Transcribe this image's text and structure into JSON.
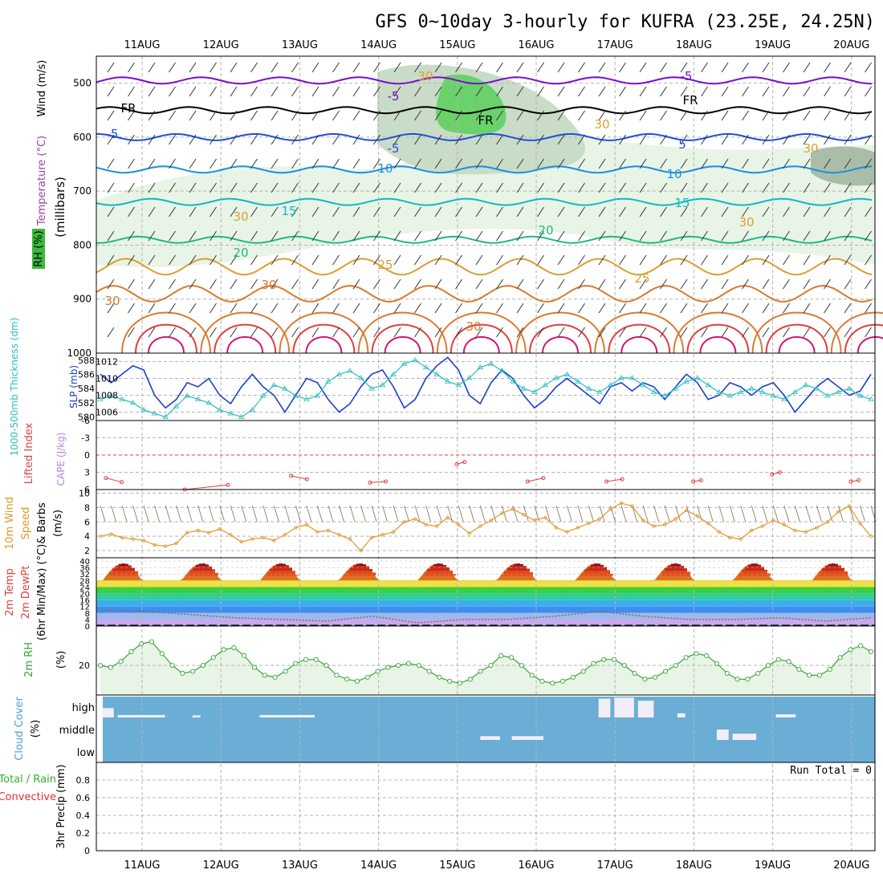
{
  "title": "GFS 0~10day 3-hourly for KUFRA (23.25E, 24.25N)",
  "colors": {
    "grid": "#b4b4b4",
    "rh_fill_light": "#e8f4e6",
    "rh_fill_mid": "#c9dcc7",
    "rh_fill_dark": "#a9bda9",
    "rh_fill_green": "#6bd26b",
    "temp_cold": "#7a0dc9",
    "temp_freeze": "#000000",
    "temp_m5": "#1f4fd6",
    "temp_10": "#1a8fe0",
    "temp_15": "#11b8c0",
    "temp_20": "#1fb985",
    "temp_25": "#d9a030",
    "temp_30": "#d97a30",
    "temp_35": "#e03c3c",
    "temp_40": "#d6126e",
    "slp": "#1a3fcc",
    "thickness": "#2cbdbd",
    "lifted_index": "#e04040",
    "wind10": "#e0962a",
    "barb": "#8a6a4a",
    "dewpt_line": "#8a6a4a",
    "rh2m": "#3aa23a",
    "cloud_bg": "#6aaed6",
    "cloud_block": "#f2eef8",
    "precip_total": "#30b030",
    "precip_conv": "#e03030"
  },
  "dates": [
    "11AUG",
    "12AUG",
    "13AUG",
    "14AUG",
    "15AUG",
    "16AUG",
    "17AUG",
    "18AUG",
    "19AUG",
    "20AUG"
  ],
  "panel_labels": {
    "upper_wind": "Wind (m/s)",
    "upper_temp": "Temperature (°C)",
    "upper_rh": "RH (%)",
    "upper_unit": "(millibars)",
    "slp": "SLP (mb)",
    "thickness": "1000-500mb Thickness (dm)",
    "lifted": "Lifted Index",
    "cape": "CAPE (J/kg)",
    "wind10_a": "10m Wind",
    "wind10_b": "Speed",
    "wind10_c": "& Barbs",
    "wind10_unit": "(m/s)",
    "temp_a": "2m Temp",
    "temp_b": "2m DewPt",
    "temp_c": "(6hr Min/Max) (°C)",
    "rh_a": "2m RH",
    "rh_unit": "(%)",
    "cloud_a": "Cloud Cover",
    "cloud_unit": "(%)",
    "precip_a": "3hr Precip (mm)",
    "precip_total": "Total / Rain",
    "precip_conv": "Convective"
  },
  "pressure_ticks": [
    "500",
    "600",
    "700",
    "800",
    "900",
    "1000"
  ],
  "contour_labels": [
    "-5",
    "-5",
    "-5",
    "-5",
    "FR",
    "FR",
    "FR",
    "5",
    "10",
    "10",
    "15",
    "15",
    "20",
    "20",
    "25",
    "25",
    "30",
    "30",
    "30",
    "30",
    "30",
    "30",
    "30",
    "30"
  ],
  "slp_ticks": [
    "1012",
    "1010",
    "1008",
    "1006"
  ],
  "thickness_ticks": [
    "588",
    "586",
    "584",
    "582",
    "580"
  ],
  "li_ticks": [
    "-6",
    "-3",
    "0",
    "3",
    "6"
  ],
  "wind10_ticks": [
    "10",
    "8",
    "6",
    "4",
    "2"
  ],
  "temp_ticks": [
    "40",
    "36",
    "32",
    "28",
    "24",
    "20",
    "16",
    "12",
    "8",
    "4",
    "0"
  ],
  "rh_ticks": [
    "20"
  ],
  "cloud_levels": [
    "high",
    "middle",
    "low"
  ],
  "precip_ticks": [
    "0.8",
    "0.6",
    "0.4",
    "0.2",
    "0"
  ],
  "run_total": "Run Total = 0",
  "chart_data": {
    "type": "line",
    "title": "GFS 0~10day 3-hourly for KUFRA (23.25E, 24.25N)",
    "x_labels": [
      "11AUG",
      "12AUG",
      "13AUG",
      "14AUG",
      "15AUG",
      "16AUG",
      "17AUG",
      "18AUG",
      "19AUG",
      "20AUG"
    ],
    "upper_air": {
      "ylabel": "(millibars)",
      "ylim": [
        1000,
        450
      ],
      "isotherms": [
        {
          "label": "-5",
          "level_mb": 495
        },
        {
          "label": "FR",
          "level_mb": 550
        },
        {
          "label": "-5",
          "level_mb": 600
        },
        {
          "label": "10",
          "level_mb": 660
        },
        {
          "label": "15",
          "level_mb": 720
        },
        {
          "label": "20",
          "level_mb": 790
        },
        {
          "label": "25",
          "level_mb": 840
        },
        {
          "label": "30",
          "level_mb": 890
        }
      ]
    },
    "slp": {
      "ylabel": "SLP (mb)",
      "ylim": [
        1005,
        1013
      ],
      "values": [
        1010.5,
        1009.5,
        1010.5,
        1011.5,
        1011,
        1008,
        1006.5,
        1007.5,
        1009.5,
        1009,
        1010,
        1008,
        1007,
        1009,
        1010.5,
        1009,
        1008,
        1006,
        1008,
        1010,
        1009.5,
        1007.5,
        1006,
        1007,
        1009,
        1010.5,
        1011,
        1009,
        1006.5,
        1007.5,
        1010,
        1011.5,
        1012.5,
        1011,
        1008,
        1007,
        1009.5,
        1011,
        1010,
        1008,
        1006.5,
        1007.5,
        1009,
        1010,
        1009,
        1008,
        1007,
        1009,
        1009.5,
        1008.5,
        1009.5,
        1009,
        1007.5,
        1009,
        1010.5,
        1009.5,
        1007.5,
        1008,
        1009.5,
        1009,
        1008,
        1009,
        1009.5,
        1008,
        1006,
        1007.5,
        1009,
        1010,
        1009,
        1008,
        1008.5,
        1010.5
      ]
    },
    "thickness": {
      "ylabel": "1000-500mb Thickness (dm)",
      "ylim": [
        579.5,
        589
      ],
      "values": [
        582.5,
        583,
        582.5,
        582,
        581,
        580.5,
        580,
        581.5,
        583,
        582.5,
        582,
        581,
        580.5,
        580,
        581,
        583,
        584.5,
        584,
        583,
        582.5,
        583,
        585,
        586,
        586.5,
        585.5,
        584,
        584.5,
        586,
        587.5,
        588,
        587,
        586,
        585,
        584.5,
        585.5,
        587,
        587.5,
        586.5,
        585,
        584,
        583.5,
        584.5,
        585.5,
        586,
        585,
        584,
        583.5,
        584.5,
        585.5,
        585.5,
        584.5,
        583.5,
        583,
        584,
        585,
        585.5,
        584.5,
        583.5,
        583,
        583.5,
        584,
        583.5,
        583,
        582.5,
        583.5,
        584.5,
        584,
        583,
        583.5,
        584,
        583,
        582.5
      ]
    },
    "lifted_index": {
      "ylabel": "Lifted Index",
      "ylim": [
        6,
        -6
      ],
      "points": [
        [
          0.05,
          4
        ],
        [
          0.25,
          4.7
        ],
        [
          1.05,
          6
        ],
        [
          1.6,
          5.2
        ],
        [
          2.4,
          3.6
        ],
        [
          2.6,
          4.2
        ],
        [
          3.4,
          4.8
        ],
        [
          3.6,
          4.6
        ],
        [
          4.5,
          1.6
        ],
        [
          4.6,
          1.2
        ],
        [
          5.4,
          4.6
        ],
        [
          5.6,
          4
        ],
        [
          6.4,
          4.6
        ],
        [
          6.6,
          4.2
        ],
        [
          7.5,
          4.6
        ],
        [
          7.6,
          4.4
        ],
        [
          8.5,
          3.4
        ],
        [
          8.6,
          3
        ],
        [
          9.5,
          4.6
        ],
        [
          9.6,
          4.4
        ]
      ]
    },
    "wind10": {
      "ylabel": "10m Wind Speed & Barbs (m/s)",
      "ylim": [
        1,
        10.5
      ],
      "values": [
        4,
        4.3,
        3.8,
        3.6,
        3.4,
        2.8,
        2.6,
        3,
        4.5,
        4.8,
        4.5,
        5,
        4.2,
        3.2,
        3.6,
        3.8,
        3.4,
        4.2,
        5.2,
        5.6,
        4.6,
        4.8,
        4.2,
        3.6,
        2,
        3.8,
        4.2,
        4.6,
        6,
        6.4,
        5.6,
        5.4,
        6.6,
        5.6,
        4.4,
        5.4,
        6.2,
        7.2,
        7.8,
        7,
        6.2,
        6.6,
        5.2,
        4.6,
        5.2,
        5.8,
        6.4,
        7.8,
        8.6,
        8.2,
        6.2,
        5.4,
        5.6,
        6.4,
        7.6,
        6.8,
        5.8,
        4.6,
        3.8,
        3.6,
        4.8,
        5.4,
        6.2,
        5.6,
        4.8,
        4.6,
        5.2,
        6,
        7.4,
        8.2,
        5.8,
        4
      ]
    },
    "temp2m": {
      "ylabel": "2m Temp (°C)",
      "ylim": [
        0,
        42
      ],
      "tmax": [
        38,
        38,
        39,
        39,
        40,
        39,
        39,
        39,
        39,
        38
      ],
      "tmin": [
        28,
        28,
        28,
        28,
        29,
        29,
        29,
        28,
        28,
        29
      ],
      "dewpt": [
        10,
        9,
        7,
        5,
        4,
        3,
        6,
        2,
        4,
        4,
        6,
        9,
        6,
        4,
        4,
        5,
        3,
        5
      ]
    },
    "rh2m": {
      "ylabel": "2m RH (%)",
      "ylim": [
        5,
        40
      ],
      "values": [
        20,
        19,
        22,
        27,
        31,
        32,
        26,
        20,
        16,
        17,
        20,
        24,
        28,
        29,
        25,
        19,
        15,
        14,
        17,
        21,
        23,
        23,
        20,
        15,
        13,
        12,
        14,
        17,
        19,
        20,
        21,
        20,
        17,
        14,
        12,
        11,
        13,
        17,
        20,
        25,
        24,
        20,
        15,
        12,
        11,
        12,
        14,
        17,
        21,
        23,
        23,
        20,
        16,
        13,
        14,
        17,
        20,
        24,
        26,
        25,
        21,
        16,
        13,
        13,
        16,
        20,
        23,
        22,
        18,
        15,
        15,
        18,
        24,
        28,
        30,
        27
      ]
    },
    "cloud_cover": {
      "levels": [
        "high",
        "middle",
        "low"
      ],
      "high_blocks": [
        [
          0.0,
          0.15,
          0.45
        ],
        [
          0.2,
          0.8,
          0.12
        ],
        [
          1.15,
          1.25,
          0.1
        ],
        [
          2.0,
          2.7,
          0.12
        ],
        [
          6.3,
          6.45,
          0.9
        ],
        [
          6.5,
          6.75,
          0.95
        ],
        [
          6.8,
          7.0,
          0.8
        ],
        [
          7.3,
          7.4,
          0.2
        ],
        [
          8.55,
          8.8,
          0.15
        ]
      ],
      "middle_blocks": [
        [
          4.8,
          5.05,
          0.18
        ],
        [
          5.2,
          5.6,
          0.18
        ],
        [
          7.8,
          7.95,
          0.5
        ],
        [
          8.0,
          8.3,
          0.3
        ]
      ]
    },
    "precip": {
      "ylabel": "3hr Precip (mm)",
      "ylim": [
        0,
        1
      ],
      "run_total": 0
    }
  }
}
